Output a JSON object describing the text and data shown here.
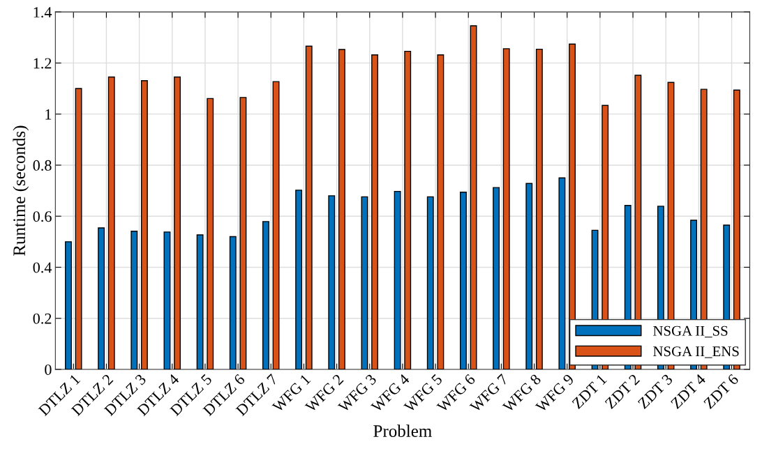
{
  "chart_data": {
    "type": "bar",
    "xlabel": "Problem",
    "ylabel": "Runtime (seconds)",
    "categories": [
      "DTLZ 1",
      "DTLZ 2",
      "DTLZ 3",
      "DTLZ 4",
      "DTLZ 5",
      "DTLZ 6",
      "DTLZ 7",
      "WFG 1",
      "WFG 2",
      "WFG 3",
      "WFG 4",
      "WFG 5",
      "WFG 6",
      "WFG 7",
      "WFG 8",
      "WFG 9",
      "ZDT 1",
      "ZDT 2",
      "ZDT 3",
      "ZDT 4",
      "ZDT 6"
    ],
    "series": [
      {
        "name": "NSGA II_SS",
        "color": "#0072bd",
        "values": [
          0.5,
          0.554,
          0.541,
          0.538,
          0.527,
          0.52,
          0.579,
          0.702,
          0.68,
          0.676,
          0.697,
          0.676,
          0.694,
          0.712,
          0.728,
          0.75,
          0.545,
          0.642,
          0.639,
          0.584,
          0.565
        ]
      },
      {
        "name": "NSGA II_ENS",
        "color": "#d95319",
        "values": [
          1.1,
          1.145,
          1.131,
          1.145,
          1.061,
          1.065,
          1.127,
          1.266,
          1.253,
          1.232,
          1.246,
          1.232,
          1.346,
          1.256,
          1.254,
          1.274,
          1.034,
          1.152,
          1.124,
          1.097,
          1.094
        ]
      }
    ],
    "ylim": [
      0,
      1.4
    ],
    "yticks": [
      0,
      0.2,
      0.4,
      0.6,
      0.8,
      1,
      1.2,
      1.4
    ],
    "grid": true,
    "legend": "lower right"
  }
}
